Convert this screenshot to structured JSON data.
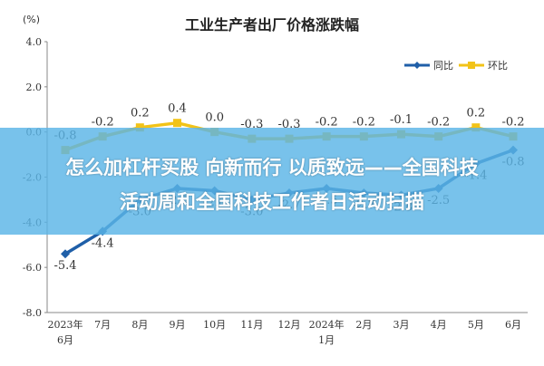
{
  "chart_data": {
    "type": "line",
    "title": "工业生产者出厂价格涨跌幅",
    "unit_label": "(%)",
    "categories": [
      "2023年\n6月",
      "7月",
      "8月",
      "9月",
      "10月",
      "11月",
      "12月",
      "2024年\n1月",
      "2月",
      "3月",
      "4月",
      "5月",
      "6月"
    ],
    "ylim": [
      -8.0,
      4.0
    ],
    "yticks": [
      "4.0",
      "2.0",
      "0.0",
      "-2.0",
      "-4.0",
      "-6.0",
      "-8.0"
    ],
    "grid": false,
    "legend_position": "top-right",
    "series": [
      {
        "name": "同比",
        "color": "#1f5fa8",
        "values": [
          -5.4,
          -4.4,
          -3.0,
          -2.5,
          -2.6,
          -3.0,
          -2.7,
          -2.5,
          -2.7,
          -2.8,
          -2.5,
          -1.4,
          -0.8
        ],
        "labels": [
          "-5.4",
          "-4.4",
          "-3.0",
          "-2.5",
          "-2.6",
          "-3.0",
          "-2.7",
          "-2.5",
          "-2.7",
          "-2.8",
          "-2.5",
          "-1.4",
          "-0.8"
        ]
      },
      {
        "name": "环比",
        "color": "#f2c318",
        "values": [
          -0.8,
          -0.2,
          0.2,
          0.4,
          0.0,
          -0.3,
          -0.3,
          -0.2,
          -0.2,
          -0.1,
          -0.2,
          0.2,
          -0.2
        ],
        "labels": [
          "-0.8",
          "-0.2",
          "0.2",
          "0.4",
          "0.0",
          "-0.3",
          "-0.3",
          "-0.2",
          "-0.2",
          "-0.1",
          "-0.2",
          "0.2",
          "-0.2"
        ]
      }
    ]
  },
  "banner": {
    "line1": "怎么加杠杆买股 向新而行 以质致远——全国科技",
    "line2": "活动周和全国科技工作者日活动扫描"
  }
}
